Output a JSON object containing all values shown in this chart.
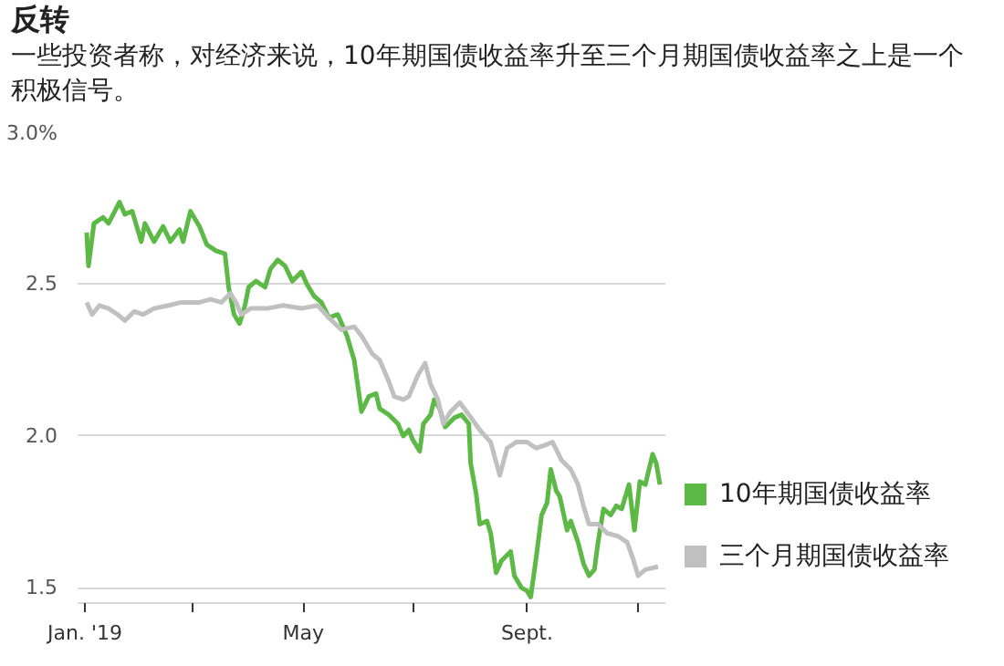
{
  "chart_data": {
    "type": "line",
    "title": "反转",
    "subtitle": "一些投资者称，对经济来说，10年期国债收益率升至三个月期国债收益率之上是一个积极信号。",
    "xlim": [
      "2018-12-28",
      "2019-11-16"
    ],
    "xticks": [
      {
        "value": "2019-01-01",
        "label": "Jan. '19"
      },
      {
        "value": "2019-03-01",
        "label": null
      },
      {
        "value": "2019-05-01",
        "label": "May"
      },
      {
        "value": "2019-07-01",
        "label": null
      },
      {
        "value": "2019-09-01",
        "label": "Sept."
      },
      {
        "value": "2019-11-01",
        "label": null
      }
    ],
    "ylim": [
      1.45,
      3.0
    ],
    "yticks": [
      {
        "value": 3.0,
        "label": "3.0%"
      },
      {
        "value": 2.5,
        "label": "2.5"
      },
      {
        "value": 2.0,
        "label": "2.0"
      },
      {
        "value": 1.5,
        "label": "1.5"
      }
    ],
    "grid": "y",
    "legend": "right",
    "line_style": "solid",
    "series": [
      {
        "name": "10年期国债收益率",
        "color": "#5cb946",
        "x": [
          "2019-01-02",
          "2019-01-03",
          "2019-01-06",
          "2019-01-11",
          "2019-01-14",
          "2019-01-20",
          "2019-01-23",
          "2019-01-27",
          "2019-02-01",
          "2019-02-03",
          "2019-02-08",
          "2019-02-13",
          "2019-02-17",
          "2019-02-22",
          "2019-02-24",
          "2019-02-28",
          "2019-03-05",
          "2019-03-09",
          "2019-03-14",
          "2019-03-19",
          "2019-03-21",
          "2019-03-24",
          "2019-03-27",
          "2019-03-30",
          "2019-04-01",
          "2019-04-05",
          "2019-04-10",
          "2019-04-13",
          "2019-04-17",
          "2019-04-21",
          "2019-04-25",
          "2019-04-30",
          "2019-05-03",
          "2019-05-07",
          "2019-05-11",
          "2019-05-15",
          "2019-05-20",
          "2019-05-25",
          "2019-05-29",
          "2019-06-02",
          "2019-06-06",
          "2019-06-10",
          "2019-06-12",
          "2019-06-17",
          "2019-06-22",
          "2019-06-25",
          "2019-06-28",
          "2019-06-30",
          "2019-07-04",
          "2019-07-06",
          "2019-07-10",
          "2019-07-12",
          "2019-07-15",
          "2019-07-18",
          "2019-07-23",
          "2019-07-27",
          "2019-07-31",
          "2019-08-01",
          "2019-08-04",
          "2019-08-06",
          "2019-08-10",
          "2019-08-12",
          "2019-08-15",
          "2019-08-18",
          "2019-08-23",
          "2019-08-25",
          "2019-08-29",
          "2019-09-01",
          "2019-09-03",
          "2019-09-06",
          "2019-09-09",
          "2019-09-12",
          "2019-09-14",
          "2019-09-17",
          "2019-09-19",
          "2019-09-23",
          "2019-09-25",
          "2019-09-29",
          "2019-10-02",
          "2019-10-05",
          "2019-10-08",
          "2019-10-10",
          "2019-10-13",
          "2019-10-17",
          "2019-10-20",
          "2019-10-23",
          "2019-10-27",
          "2019-10-30",
          "2019-11-02",
          "2019-11-05",
          "2019-11-09",
          "2019-11-11",
          "2019-11-13"
        ],
        "values": [
          2.67,
          2.56,
          2.7,
          2.72,
          2.7,
          2.77,
          2.73,
          2.74,
          2.64,
          2.7,
          2.64,
          2.69,
          2.64,
          2.68,
          2.64,
          2.74,
          2.69,
          2.63,
          2.61,
          2.6,
          2.49,
          2.4,
          2.37,
          2.43,
          2.49,
          2.51,
          2.49,
          2.55,
          2.58,
          2.56,
          2.51,
          2.54,
          2.5,
          2.46,
          2.44,
          2.39,
          2.4,
          2.33,
          2.25,
          2.08,
          2.13,
          2.14,
          2.09,
          2.07,
          2.04,
          2.0,
          2.02,
          1.99,
          1.95,
          2.04,
          2.07,
          2.12,
          2.09,
          2.03,
          2.06,
          2.07,
          2.04,
          1.91,
          1.81,
          1.71,
          1.72,
          1.68,
          1.55,
          1.59,
          1.62,
          1.54,
          1.5,
          1.49,
          1.47,
          1.6,
          1.74,
          1.78,
          1.89,
          1.82,
          1.8,
          1.69,
          1.72,
          1.65,
          1.58,
          1.54,
          1.56,
          1.65,
          1.76,
          1.74,
          1.77,
          1.76,
          1.84,
          1.69,
          1.85,
          1.84,
          1.94,
          1.91,
          1.84
        ]
      },
      {
        "name": "三个月期国债收益率",
        "color": "#c0c0c0",
        "x": [
          "2019-01-02",
          "2019-01-05",
          "2019-01-09",
          "2019-01-14",
          "2019-01-19",
          "2019-01-23",
          "2019-01-28",
          "2019-02-02",
          "2019-02-08",
          "2019-02-16",
          "2019-02-23",
          "2019-03-05",
          "2019-03-11",
          "2019-03-17",
          "2019-03-22",
          "2019-03-25",
          "2019-03-28",
          "2019-04-02",
          "2019-04-11",
          "2019-04-20",
          "2019-04-30",
          "2019-05-09",
          "2019-05-15",
          "2019-05-22",
          "2019-05-29",
          "2019-06-02",
          "2019-06-08",
          "2019-06-12",
          "2019-06-17",
          "2019-06-20",
          "2019-06-25",
          "2019-06-28",
          "2019-07-03",
          "2019-07-07",
          "2019-07-10",
          "2019-07-14",
          "2019-07-17",
          "2019-07-21",
          "2019-07-26",
          "2019-07-31",
          "2019-08-06",
          "2019-08-12",
          "2019-08-17",
          "2019-08-21",
          "2019-08-26",
          "2019-09-01",
          "2019-09-06",
          "2019-09-11",
          "2019-09-15",
          "2019-09-20",
          "2019-09-25",
          "2019-09-29",
          "2019-10-02",
          "2019-10-05",
          "2019-10-10",
          "2019-10-15",
          "2019-10-21",
          "2019-10-26",
          "2019-10-29",
          "2019-11-01",
          "2019-11-05",
          "2019-11-12"
        ],
        "values": [
          2.44,
          2.4,
          2.43,
          2.42,
          2.4,
          2.38,
          2.41,
          2.4,
          2.42,
          2.43,
          2.44,
          2.44,
          2.45,
          2.44,
          2.47,
          2.44,
          2.4,
          2.42,
          2.42,
          2.43,
          2.42,
          2.43,
          2.39,
          2.35,
          2.36,
          2.33,
          2.27,
          2.25,
          2.18,
          2.13,
          2.12,
          2.13,
          2.2,
          2.24,
          2.17,
          2.12,
          2.04,
          2.08,
          2.11,
          2.07,
          2.02,
          1.98,
          1.87,
          1.96,
          1.98,
          1.98,
          1.96,
          1.97,
          1.98,
          1.92,
          1.89,
          1.84,
          1.77,
          1.71,
          1.71,
          1.68,
          1.67,
          1.65,
          1.6,
          1.54,
          1.56,
          1.57
        ]
      }
    ]
  }
}
